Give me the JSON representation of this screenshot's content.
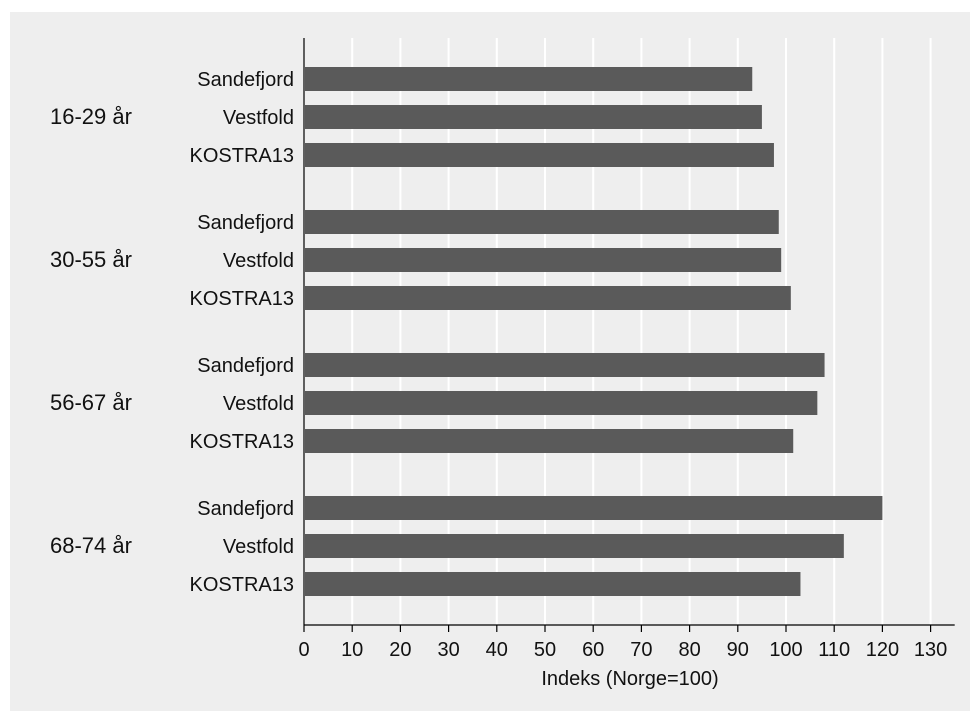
{
  "chart_data": {
    "type": "bar",
    "orientation": "horizontal",
    "xlabel": "Indeks (Norge=100)",
    "xlim": [
      0,
      135
    ],
    "xticks": [
      0,
      10,
      20,
      30,
      40,
      50,
      60,
      70,
      80,
      90,
      100,
      110,
      120,
      130
    ],
    "grid": true,
    "bar_color": "#5a5a5a",
    "grid_color": "#ffffff",
    "background_color": "#eeeeee",
    "groups": [
      {
        "label": "16-29 år",
        "bars": [
          {
            "label": "Sandefjord",
            "value": 93
          },
          {
            "label": "Vestfold",
            "value": 95
          },
          {
            "label": "KOSTRA13",
            "value": 97.5
          }
        ]
      },
      {
        "label": "30-55 år",
        "bars": [
          {
            "label": "Sandefjord",
            "value": 98.5
          },
          {
            "label": "Vestfold",
            "value": 99
          },
          {
            "label": "KOSTRA13",
            "value": 101
          }
        ]
      },
      {
        "label": "56-67 år",
        "bars": [
          {
            "label": "Sandefjord",
            "value": 108
          },
          {
            "label": "Vestfold",
            "value": 106.5
          },
          {
            "label": "KOSTRA13",
            "value": 101.5
          }
        ]
      },
      {
        "label": "68-74 år",
        "bars": [
          {
            "label": "Sandefjord",
            "value": 120
          },
          {
            "label": "Vestfold",
            "value": 112
          },
          {
            "label": "KOSTRA13",
            "value": 103
          }
        ]
      }
    ]
  }
}
